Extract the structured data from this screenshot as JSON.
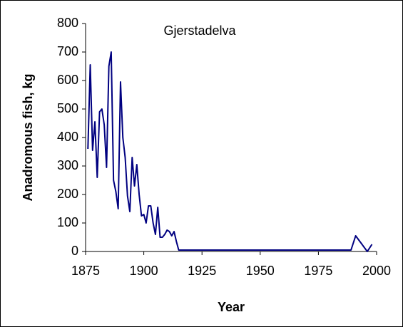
{
  "chart_data": {
    "type": "line",
    "title": "Gjerstadelva",
    "xlabel": "Year",
    "ylabel": "Anadromous fish, kg",
    "series": [
      {
        "name": "Gjerstadelva",
        "color": "#000080",
        "x": [
          1876,
          1877,
          1878,
          1879,
          1880,
          1881,
          1882,
          1883,
          1884,
          1885,
          1886,
          1887,
          1888,
          1889,
          1890,
          1891,
          1892,
          1893,
          1894,
          1895,
          1896,
          1897,
          1898,
          1899,
          1900,
          1901,
          1902,
          1903,
          1904,
          1905,
          1906,
          1907,
          1908,
          1909,
          1910,
          1911,
          1912,
          1913,
          1914,
          1915,
          1989,
          1991,
          1996,
          1998
        ],
        "values": [
          360,
          655,
          355,
          455,
          260,
          490,
          500,
          445,
          295,
          650,
          700,
          250,
          210,
          150,
          595,
          400,
          330,
          195,
          140,
          330,
          230,
          305,
          200,
          125,
          130,
          100,
          160,
          160,
          100,
          60,
          155,
          50,
          50,
          60,
          75,
          70,
          55,
          70,
          35,
          5,
          5,
          55,
          0,
          25
        ]
      }
    ],
    "xlim": [
      1875,
      2000
    ],
    "xticks": [
      1875,
      1900,
      1925,
      1950,
      1975,
      2000
    ],
    "ylim": [
      0,
      800
    ],
    "yticks": [
      0,
      100,
      200,
      300,
      400,
      500,
      600,
      700,
      800
    ]
  }
}
